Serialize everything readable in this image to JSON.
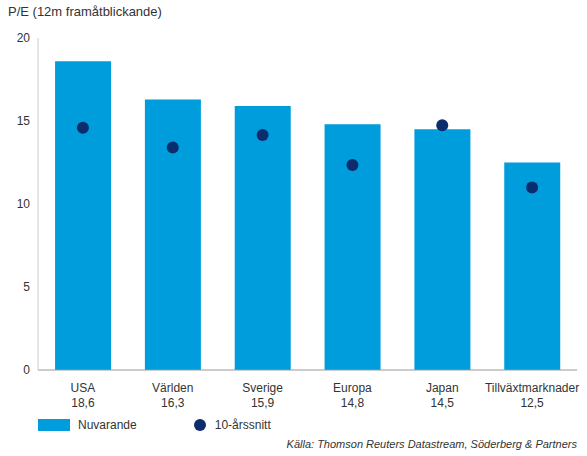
{
  "chart_data": {
    "type": "bar",
    "title": "P/E (12m framåtblickande)",
    "source": "Källa: Thomson Reuters Datastream, Söderberg & Partners",
    "categories": [
      "USA",
      "Världen",
      "Sverige",
      "Europa",
      "Japan",
      "Tillväxtmarknader"
    ],
    "series": [
      {
        "name": "Nuvarande",
        "type": "bar",
        "color": "#009ddc",
        "values": [
          18.6,
          16.3,
          15.9,
          14.8,
          14.5,
          12.5
        ],
        "value_labels": [
          "18,6",
          "16,3",
          "15,9",
          "14,8",
          "14,5",
          "12,5"
        ]
      },
      {
        "name": "10-årssnitt",
        "type": "scatter",
        "marker": "circle",
        "color": "#0b2d6e",
        "values": [
          14.6,
          13.4,
          14.15,
          12.35,
          14.75,
          11.0
        ]
      }
    ],
    "ylim": [
      0,
      20
    ],
    "yticks": [
      0,
      5,
      10,
      15,
      20
    ],
    "grid": false,
    "legend": "bottom"
  }
}
